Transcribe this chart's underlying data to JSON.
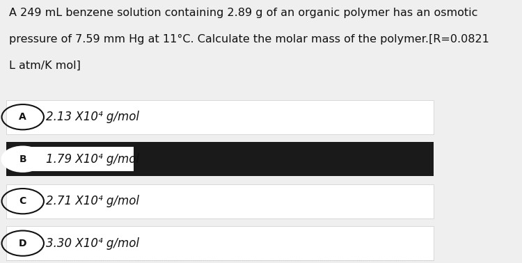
{
  "question_line1": "A 249 mL benzene solution containing 2.89 g of an organic polymer has an osmotic",
  "question_line2": "pressure of 7.59 mm Hg at 11°C. Calculate the molar mass of the polymer.[R=0.0821",
  "question_line3": "L atm/K mol]",
  "options": [
    {
      "label": "A",
      "text": "2.13 X10⁴ g/mol",
      "highlighted": false
    },
    {
      "label": "B",
      "text": "1.79 X10⁴ g/mol",
      "highlighted": true
    },
    {
      "label": "C",
      "text": "2.71 X10⁴ g/mol",
      "highlighted": false
    },
    {
      "label": "D",
      "text": "3.30 X10⁴ g/mol",
      "highlighted": false
    }
  ],
  "bg_color": "#efefef",
  "highlight_bg": "#1a1a1a",
  "option_bg": "#ffffff",
  "text_color": "#111111",
  "question_fontsize": 11.5,
  "option_fontsize": 12,
  "circle_color": "#111111",
  "left_bar_color": "#7b2d8b"
}
